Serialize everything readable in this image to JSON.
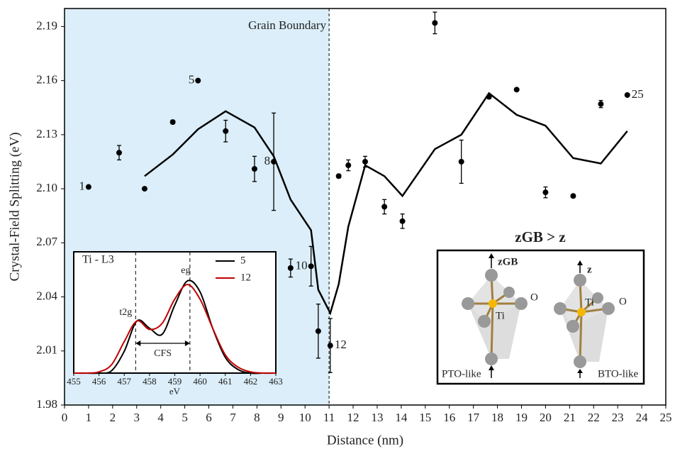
{
  "chart_data": {
    "type": "scatter",
    "xlabel": "Distance (nm)",
    "ylabel": "Crystal-Field Splitting (eV)",
    "xlim": [
      0,
      25
    ],
    "xticks": [
      0,
      1,
      2,
      3,
      4,
      5,
      6,
      7,
      8,
      9,
      10,
      11,
      12,
      13,
      14,
      15,
      16,
      17,
      18,
      19,
      20,
      21,
      22,
      23,
      24,
      25
    ],
    "ylim": [
      1.98,
      2.2
    ],
    "yticks": [
      1.98,
      2.01,
      2.04,
      2.07,
      {
        "value": 2.1,
        "label": "2.10"
      },
      2.13,
      2.16,
      2.19
    ],
    "shade": {
      "xlim": [
        0,
        11
      ],
      "color": "#dbeef9"
    },
    "boundary": {
      "x": 11,
      "label": "Grain Boundary"
    },
    "series": [
      {
        "type": "scatter",
        "color": "#000000",
        "x": [
          1.0,
          2.27,
          3.33,
          4.5,
          5.55,
          6.7,
          7.9,
          8.7,
          9.4,
          10.25,
          10.55,
          11.05,
          11.4,
          11.8,
          12.5,
          13.3,
          14.05,
          15.4,
          16.5,
          17.65,
          18.8,
          20.0,
          21.15,
          22.3,
          23.4
        ],
        "values": [
          2.101,
          2.12,
          2.1,
          2.137,
          2.16,
          2.132,
          2.111,
          2.115,
          2.056,
          2.057,
          2.021,
          2.013,
          2.107,
          2.113,
          2.115,
          2.09,
          2.082,
          2.192,
          2.115,
          2.151,
          2.155,
          2.098,
          2.096,
          2.147,
          2.152
        ],
        "errors": [
          null,
          0.004,
          null,
          0.001,
          null,
          0.006,
          0.007,
          0.027,
          0.005,
          0.011,
          0.015,
          0.015,
          0.001,
          0.003,
          0.003,
          0.004,
          0.004,
          0.006,
          0.012,
          0.001,
          null,
          0.003,
          null,
          0.002,
          null
        ],
        "point_labels": [
          "1",
          null,
          null,
          null,
          "5",
          null,
          null,
          "8",
          null,
          "10",
          null,
          "12",
          null,
          null,
          null,
          null,
          null,
          null,
          null,
          null,
          null,
          null,
          null,
          null,
          "25"
        ]
      },
      {
        "type": "line",
        "color": "#000000",
        "x": [
          3.33,
          4.5,
          5.55,
          6.7,
          7.9,
          8.7,
          9.4,
          10.25,
          10.55,
          11.05,
          11.4,
          11.8,
          12.5,
          13.3,
          14.05,
          15.4,
          16.5,
          17.65,
          18.8,
          20.0,
          21.15,
          22.3,
          23.4
        ],
        "values": [
          2.107,
          2.119,
          2.133,
          2.143,
          2.134,
          2.118,
          2.094,
          2.077,
          2.044,
          2.031,
          2.047,
          2.079,
          2.113,
          2.107,
          2.096,
          2.122,
          2.13,
          2.153,
          2.141,
          2.135,
          2.117,
          2.114,
          2.132
        ]
      }
    ],
    "inset": {
      "type": "line",
      "title": "Ti - L3",
      "xlabel": "eV",
      "xlim": [
        455,
        463
      ],
      "xticks": [
        455,
        456,
        457,
        458,
        459,
        460,
        461,
        462,
        463
      ],
      "ylim": [
        0,
        1
      ],
      "x": [
        455,
        455.5,
        456,
        456.5,
        457,
        457.5,
        458,
        458.5,
        459,
        459.5,
        460,
        460.5,
        461,
        461.5,
        462,
        462.5,
        463
      ],
      "series": [
        {
          "name": "5",
          "color": "#000000",
          "values": [
            0,
            0,
            0,
            0.02,
            0.18,
            0.43,
            0.37,
            0.32,
            0.56,
            0.76,
            0.67,
            0.37,
            0.13,
            0.03,
            0,
            0,
            0
          ]
        },
        {
          "name": "12",
          "color": "#c00000",
          "values": [
            0,
            0,
            0.01,
            0.07,
            0.26,
            0.43,
            0.36,
            0.41,
            0.61,
            0.73,
            0.61,
            0.37,
            0.15,
            0.05,
            0.01,
            0,
            0
          ]
        }
      ],
      "markers": [
        457.45,
        459.6
      ],
      "annotations": [
        "t2g",
        "eg",
        "CFS"
      ]
    },
    "diagram": {
      "title": "zGB > z",
      "labels": [
        "zGB",
        "Ti",
        "O",
        "PTO-like",
        "z",
        "Ti",
        "O",
        "BTO-like"
      ]
    }
  }
}
